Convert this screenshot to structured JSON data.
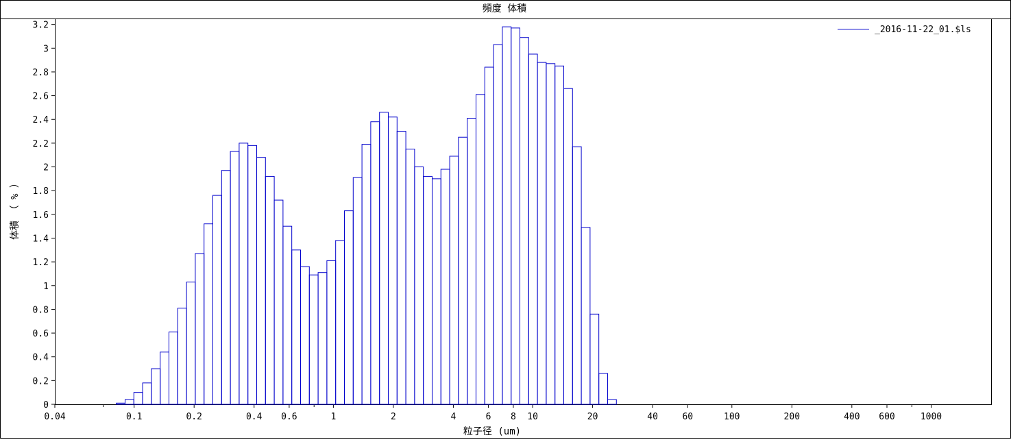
{
  "chart_data": {
    "type": "bar",
    "title": "頻度 体積",
    "xlabel": "粒子径 (um)",
    "ylabel": "体積 （ % ）",
    "x_scale": "log",
    "xlim": [
      0.04,
      2000
    ],
    "ylim": [
      0,
      3.25
    ],
    "grid": false,
    "legend_position": "top-right",
    "bar_edge_color": "#0000cc",
    "x_ticks": [
      "0.04",
      "0.1",
      "0.2",
      "0.4",
      "0.6",
      "1",
      "2",
      "4",
      "6",
      "8",
      "10",
      "20",
      "40",
      "60",
      "100",
      "200",
      "400",
      "600",
      "1000"
    ],
    "y_ticks": [
      "0",
      "0.2",
      "0.4",
      "0.6",
      "0.8",
      "1",
      "1.2",
      "1.4",
      "1.6",
      "1.8",
      "2",
      "2.2",
      "2.4",
      "2.6",
      "2.8",
      "3",
      "3.2"
    ],
    "series": [
      {
        "name": "_2016-11-22_01.$ls",
        "bin_start_um": 0.0814,
        "bin_ratio": 1.1067,
        "values": [
          0.01,
          0.04,
          0.1,
          0.18,
          0.3,
          0.44,
          0.61,
          0.81,
          1.03,
          1.27,
          1.52,
          1.76,
          1.97,
          2.13,
          2.2,
          2.18,
          2.08,
          1.92,
          1.72,
          1.5,
          1.3,
          1.16,
          1.09,
          1.11,
          1.21,
          1.38,
          1.63,
          1.91,
          2.19,
          2.38,
          2.46,
          2.42,
          2.3,
          2.15,
          2.0,
          1.92,
          1.9,
          1.98,
          2.09,
          2.25,
          2.41,
          2.61,
          2.84,
          3.03,
          3.18,
          3.17,
          3.09,
          2.95,
          2.88,
          2.87,
          2.85,
          2.66,
          2.17,
          1.49,
          0.76,
          0.26,
          0.04
        ]
      }
    ]
  }
}
